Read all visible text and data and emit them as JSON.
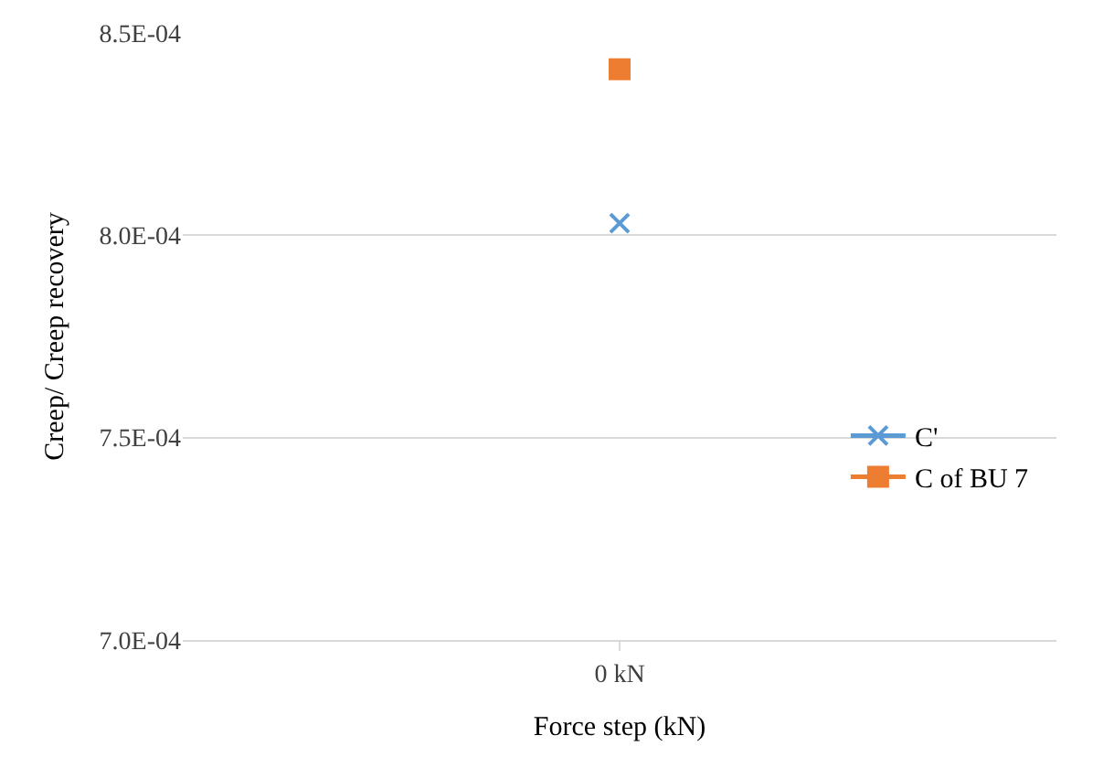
{
  "chart_data": {
    "type": "line",
    "xlabel": "Force step (kN)",
    "ylabel": "Creep/ Creep recovery",
    "categories": [
      "0 kN"
    ],
    "series": [
      {
        "name": "C'",
        "color": "#5b9bd5",
        "marker": "cross",
        "values": [
          0.000803
        ]
      },
      {
        "name": "C of BU 7",
        "color": "#ed7d31",
        "marker": "square",
        "values": [
          0.000841
        ]
      }
    ],
    "ylim": [
      0.0007,
      0.00085
    ],
    "yticks": [
      {
        "value": 0.0007,
        "label": "7.0E-04"
      },
      {
        "value": 0.00075,
        "label": "7.5E-04"
      },
      {
        "value": 0.0008,
        "label": "8.0E-04"
      },
      {
        "value": 0.00085,
        "label": "8.5E-04"
      }
    ],
    "grid": "y",
    "legend": "bottom right"
  }
}
